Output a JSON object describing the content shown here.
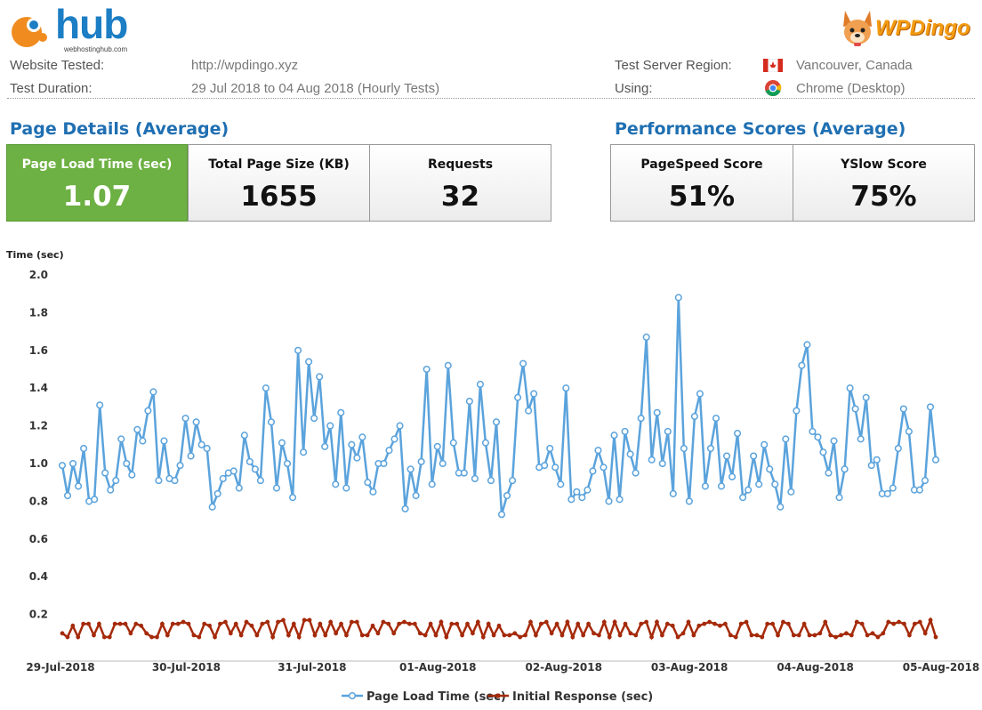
{
  "header": {
    "hub_logo_text": "hub",
    "hub_logo_subtext": "webhostinghub.com",
    "dingo_logo_text": "WPDingo"
  },
  "info": {
    "website_label": "Website Tested:",
    "website_value": "http://wpdingo.xyz",
    "duration_label": "Test Duration:",
    "duration_value": "29 Jul 2018 to 04 Aug 2018 (Hourly Tests)",
    "region_label": "Test Server Region:",
    "region_value": "Vancouver, Canada",
    "using_label": "Using:",
    "using_value": "Chrome (Desktop)"
  },
  "page_details": {
    "title": "Page Details (Average)",
    "load_time_label": "Page Load Time (sec)",
    "load_time_value": "1.07",
    "page_size_label": "Total Page Size (KB)",
    "page_size_value": "1655",
    "requests_label": "Requests",
    "requests_value": "32"
  },
  "performance": {
    "title": "Performance Scores (Average)",
    "pagespeed_label": "PageSpeed Score",
    "pagespeed_value": "51%",
    "yslow_label": "YSlow Score",
    "yslow_value": "75%"
  },
  "colors": {
    "accent_blue": "#1f6fb2",
    "green_box": "#6db043",
    "series_load": "#5ba3dc",
    "series_initial": "#a52a0a"
  },
  "chart_data": {
    "type": "line",
    "ylabel": "Time (sec)",
    "ylim": [
      0,
      2.0
    ],
    "yticks": [
      "2.0",
      "1.8",
      "1.6",
      "1.4",
      "1.2",
      "1.0",
      "0.8",
      "0.6",
      "0.4",
      "0.2"
    ],
    "xticks": [
      "29-Jul-2018",
      "30-Jul-2018",
      "31-Jul-2018",
      "01-Aug-2018",
      "02-Aug-2018",
      "03-Aug-2018",
      "04-Aug-2018",
      "05-Aug-2018"
    ],
    "grid": false,
    "legend_position": "bottom",
    "series": [
      {
        "name": "Page Load Time (sec)",
        "color": "#5ba3dc",
        "values": [
          0.99,
          0.83,
          1.0,
          0.88,
          1.08,
          0.8,
          0.81,
          1.31,
          0.95,
          0.86,
          0.91,
          1.13,
          1.0,
          0.94,
          1.18,
          1.12,
          1.28,
          1.38,
          0.91,
          1.12,
          0.92,
          0.91,
          0.99,
          1.24,
          1.04,
          1.22,
          1.1,
          1.08,
          0.77,
          0.84,
          0.92,
          0.95,
          0.96,
          0.87,
          1.15,
          1.01,
          0.97,
          0.91,
          1.4,
          1.22,
          0.87,
          1.11,
          1.0,
          0.82,
          1.6,
          1.06,
          1.54,
          1.24,
          1.46,
          1.09,
          1.2,
          0.89,
          1.27,
          0.87,
          1.1,
          1.03,
          1.14,
          0.9,
          0.85,
          1.0,
          1.0,
          1.07,
          1.13,
          1.2,
          0.76,
          0.97,
          0.83,
          1.01,
          1.5,
          0.89,
          1.09,
          1.0,
          1.52,
          1.11,
          0.95,
          0.95,
          1.33,
          0.92,
          1.42,
          1.11,
          0.91,
          1.22,
          0.73,
          0.83,
          0.91,
          1.35,
          1.53,
          1.28,
          1.37,
          0.98,
          0.99,
          1.08,
          0.98,
          0.89,
          1.4,
          0.81,
          0.85,
          0.82,
          0.86,
          0.96,
          1.07,
          0.98,
          0.8,
          1.15,
          0.81,
          1.17,
          1.05,
          0.95,
          1.24,
          1.67,
          1.02,
          1.27,
          1.0,
          1.17,
          0.84,
          1.88,
          1.08,
          0.8,
          1.25,
          1.37,
          0.88,
          1.08,
          1.24,
          0.88,
          1.04,
          0.93,
          1.16,
          0.82,
          0.86,
          1.04,
          0.89,
          1.1,
          0.97,
          0.89,
          0.77,
          1.13,
          0.85,
          1.28,
          1.52,
          1.63,
          1.17,
          1.14,
          1.06,
          0.95,
          1.12,
          0.82,
          0.97,
          1.4,
          1.29,
          1.13,
          1.35,
          0.99,
          1.02,
          0.84,
          0.84,
          0.87,
          1.08,
          1.29,
          1.17,
          0.86,
          0.86,
          0.91,
          1.3,
          1.02
        ]
      },
      {
        "name": "Initial Response (sec)",
        "color": "#a52a0a",
        "values": [
          0.1,
          0.08,
          0.14,
          0.08,
          0.15,
          0.15,
          0.09,
          0.15,
          0.08,
          0.08,
          0.15,
          0.15,
          0.15,
          0.1,
          0.15,
          0.14,
          0.1,
          0.08,
          0.08,
          0.15,
          0.09,
          0.15,
          0.15,
          0.16,
          0.15,
          0.09,
          0.08,
          0.15,
          0.14,
          0.08,
          0.15,
          0.16,
          0.1,
          0.15,
          0.09,
          0.16,
          0.14,
          0.09,
          0.15,
          0.16,
          0.08,
          0.16,
          0.17,
          0.09,
          0.15,
          0.08,
          0.17,
          0.17,
          0.09,
          0.15,
          0.09,
          0.16,
          0.1,
          0.15,
          0.09,
          0.16,
          0.16,
          0.09,
          0.09,
          0.14,
          0.1,
          0.16,
          0.15,
          0.1,
          0.15,
          0.16,
          0.15,
          0.15,
          0.1,
          0.09,
          0.15,
          0.09,
          0.16,
          0.08,
          0.15,
          0.15,
          0.09,
          0.15,
          0.1,
          0.16,
          0.08,
          0.15,
          0.09,
          0.14,
          0.09,
          0.09,
          0.1,
          0.08,
          0.09,
          0.16,
          0.09,
          0.15,
          0.16,
          0.1,
          0.15,
          0.09,
          0.16,
          0.08,
          0.15,
          0.09,
          0.15,
          0.1,
          0.09,
          0.16,
          0.08,
          0.16,
          0.09,
          0.15,
          0.1,
          0.09,
          0.15,
          0.16,
          0.08,
          0.16,
          0.09,
          0.15,
          0.14,
          0.08,
          0.1,
          0.16,
          0.09,
          0.14,
          0.15,
          0.16,
          0.15,
          0.14,
          0.15,
          0.09,
          0.08,
          0.15,
          0.16,
          0.09,
          0.09,
          0.08,
          0.15,
          0.15,
          0.09,
          0.16,
          0.15,
          0.09,
          0.09,
          0.15,
          0.09,
          0.09,
          0.1,
          0.16,
          0.09,
          0.08,
          0.09,
          0.1,
          0.09,
          0.16,
          0.15,
          0.09,
          0.1,
          0.08,
          0.1,
          0.16,
          0.15,
          0.16,
          0.15,
          0.09,
          0.15,
          0.16,
          0.1,
          0.17,
          0.08
        ]
      }
    ],
    "annotations": []
  }
}
